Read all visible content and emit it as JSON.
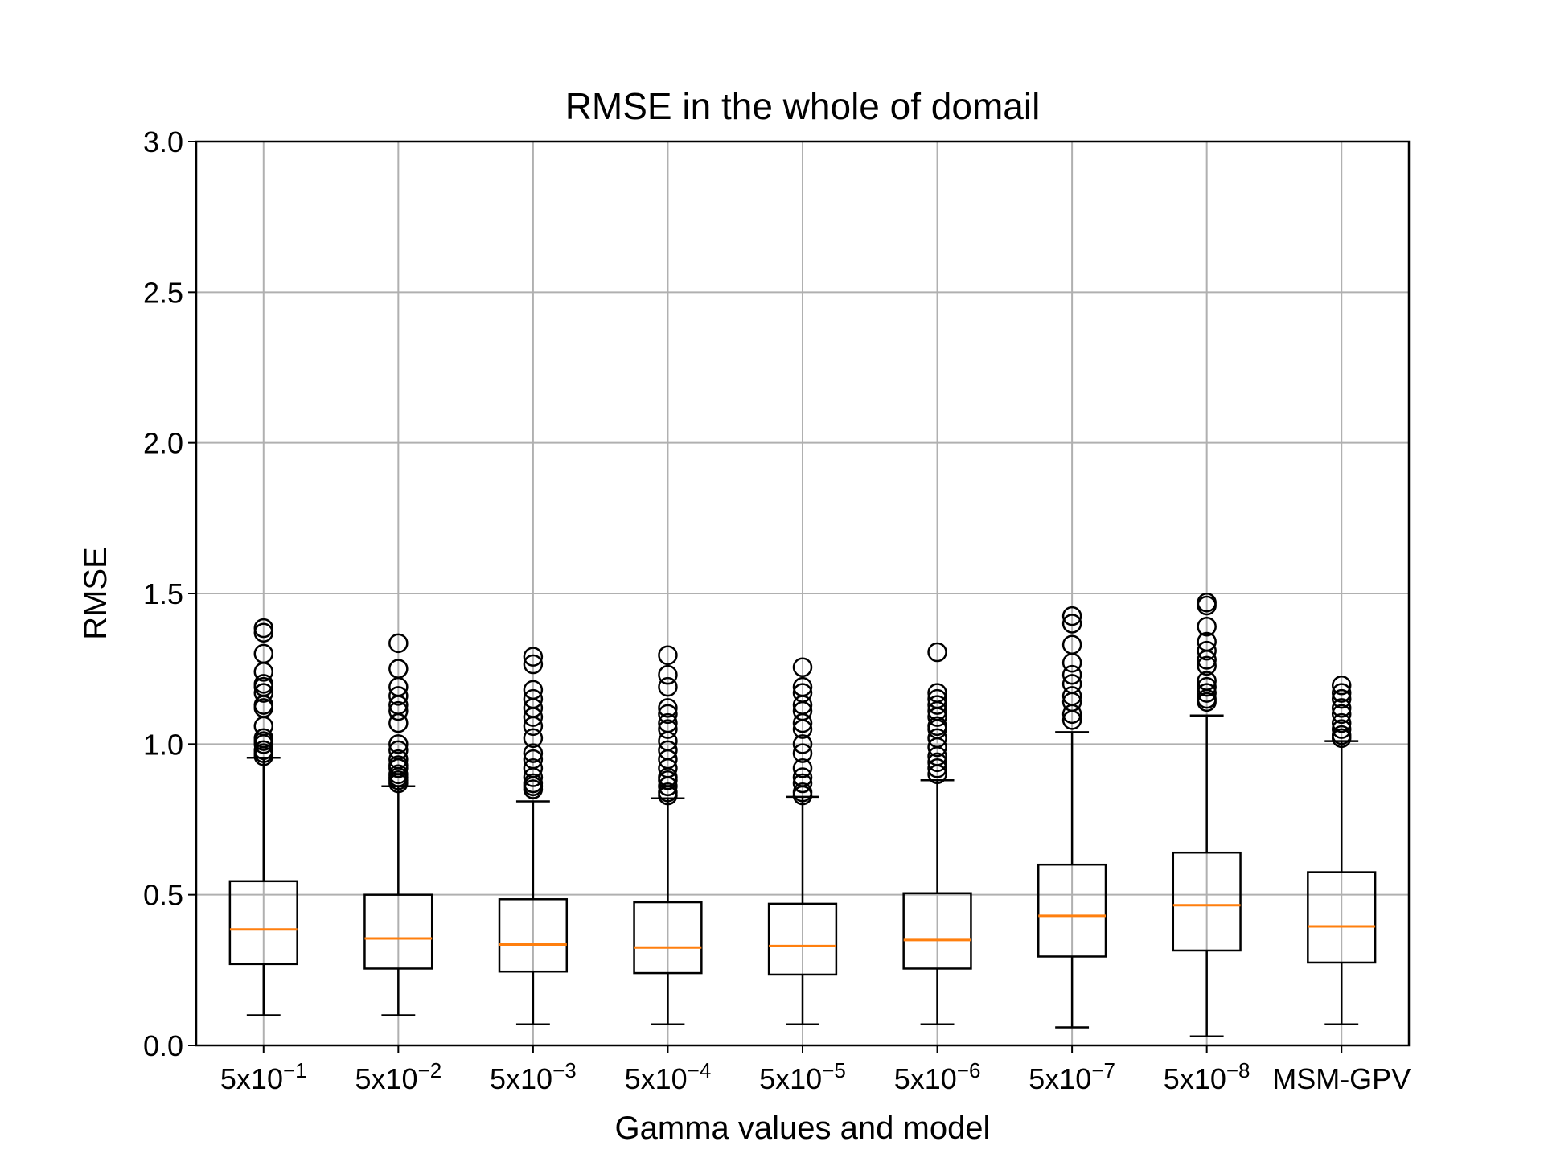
{
  "chart_data": {
    "type": "box",
    "title": "RMSE in the whole of domail",
    "xlabel": "Gamma values and model",
    "ylabel": "RMSE",
    "ylim": [
      0.0,
      3.0
    ],
    "yticks": [
      "0.0",
      "0.5",
      "1.0",
      "1.5",
      "2.0",
      "2.5",
      "3.0"
    ],
    "grid": true,
    "categories": [
      {
        "base": "5x10",
        "exp": "−1"
      },
      {
        "base": "5x10",
        "exp": "−2"
      },
      {
        "base": "5x10",
        "exp": "−3"
      },
      {
        "base": "5x10",
        "exp": "−4"
      },
      {
        "base": "5x10",
        "exp": "−5"
      },
      {
        "base": "5x10",
        "exp": "−6"
      },
      {
        "base": "5x10",
        "exp": "−7"
      },
      {
        "base": "5x10",
        "exp": "−8"
      },
      {
        "base": "MSM-GPV",
        "exp": ""
      }
    ],
    "boxes": [
      {
        "whislo": 0.1,
        "q1": 0.27,
        "med": 0.385,
        "q3": 0.545,
        "whishi": 0.955,
        "fliers": [
          0.96,
          0.97,
          0.98,
          1.0,
          1.01,
          1.02,
          1.06,
          1.12,
          1.13,
          1.17,
          1.19,
          1.2,
          1.24,
          1.3,
          1.37,
          1.385
        ]
      },
      {
        "whislo": 0.1,
        "q1": 0.255,
        "med": 0.355,
        "q3": 0.5,
        "whishi": 0.86,
        "fliers": [
          0.87,
          0.88,
          0.89,
          0.9,
          0.92,
          0.93,
          0.95,
          0.98,
          1.0,
          1.07,
          1.11,
          1.13,
          1.16,
          1.19,
          1.25,
          1.335
        ]
      },
      {
        "whislo": 0.07,
        "q1": 0.245,
        "med": 0.335,
        "q3": 0.485,
        "whishi": 0.81,
        "fliers": [
          0.85,
          0.86,
          0.87,
          0.89,
          0.92,
          0.95,
          0.97,
          1.02,
          1.06,
          1.09,
          1.12,
          1.15,
          1.18,
          1.265,
          1.29
        ]
      },
      {
        "whislo": 0.07,
        "q1": 0.24,
        "med": 0.325,
        "q3": 0.475,
        "whishi": 0.82,
        "fliers": [
          0.83,
          0.84,
          0.86,
          0.88,
          0.89,
          0.92,
          0.95,
          0.98,
          1.01,
          1.05,
          1.07,
          1.1,
          1.12,
          1.19,
          1.23,
          1.295
        ]
      },
      {
        "whislo": 0.07,
        "q1": 0.235,
        "med": 0.33,
        "q3": 0.47,
        "whishi": 0.825,
        "fliers": [
          0.83,
          0.84,
          0.87,
          0.89,
          0.92,
          0.97,
          1.0,
          1.05,
          1.07,
          1.11,
          1.13,
          1.17,
          1.19,
          1.255
        ]
      },
      {
        "whislo": 0.07,
        "q1": 0.255,
        "med": 0.35,
        "q3": 0.505,
        "whishi": 0.88,
        "fliers": [
          0.9,
          0.92,
          0.94,
          0.96,
          0.99,
          1.02,
          1.05,
          1.06,
          1.09,
          1.11,
          1.13,
          1.15,
          1.17,
          1.305
        ]
      },
      {
        "whislo": 0.06,
        "q1": 0.295,
        "med": 0.43,
        "q3": 0.6,
        "whishi": 1.04,
        "fliers": [
          1.08,
          1.1,
          1.14,
          1.16,
          1.2,
          1.23,
          1.27,
          1.33,
          1.4,
          1.425
        ]
      },
      {
        "whislo": 0.03,
        "q1": 0.315,
        "med": 0.465,
        "q3": 0.64,
        "whishi": 1.095,
        "fliers": [
          1.14,
          1.15,
          1.17,
          1.19,
          1.21,
          1.26,
          1.28,
          1.31,
          1.34,
          1.39,
          1.46,
          1.47
        ]
      },
      {
        "whislo": 0.07,
        "q1": 0.275,
        "med": 0.395,
        "q3": 0.575,
        "whishi": 1.01,
        "fliers": [
          1.02,
          1.03,
          1.05,
          1.07,
          1.1,
          1.12,
          1.15,
          1.17,
          1.195
        ]
      }
    ],
    "colors": {
      "median": "#ff7f0e",
      "box": "#000000",
      "grid": "#b0b0b0"
    }
  }
}
